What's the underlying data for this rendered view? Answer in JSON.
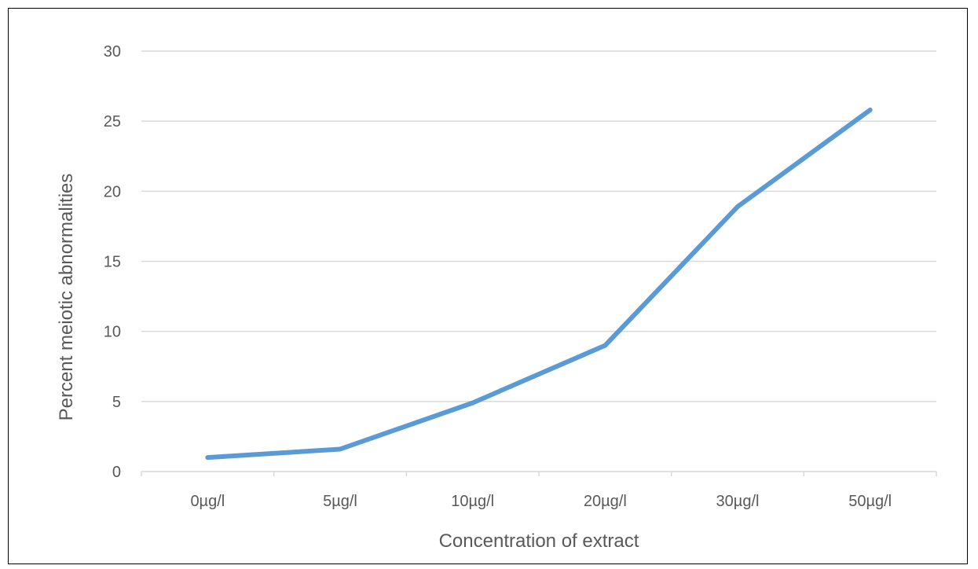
{
  "chart_data": {
    "type": "line",
    "title": "",
    "xlabel": "Concentration of extract",
    "ylabel": "Percent meiotic abnormalities",
    "categories": [
      "0µg/l",
      "5µg/l",
      "10µg/l",
      "20µg/l",
      "30µg/l",
      "50µg/l"
    ],
    "series": [
      {
        "name": "",
        "values": [
          1.0,
          1.6,
          4.9,
          9.0,
          18.9,
          25.8
        ],
        "color": "#5B9BD5"
      }
    ],
    "ylim": [
      0,
      30
    ],
    "yticks": [
      0,
      5,
      10,
      15,
      20,
      25,
      30
    ],
    "grid": true,
    "legend": "none"
  }
}
